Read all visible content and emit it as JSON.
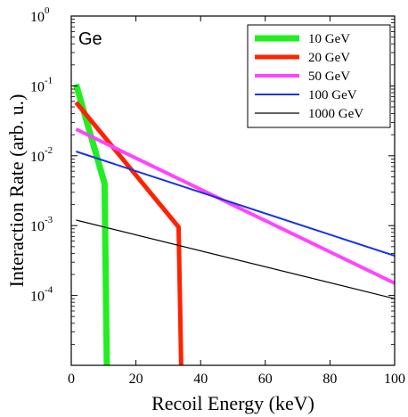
{
  "chart_data": {
    "type": "line",
    "panel_label": "Ge",
    "xlabel": "Recoil Energy (keV)",
    "ylabel": "Interaction Rate (arb. u.)",
    "xlim": [
      0,
      100
    ],
    "ylim": [
      1e-05,
      1
    ],
    "yscale": "log",
    "x_ticks": [
      0,
      20,
      40,
      60,
      80,
      100
    ],
    "x_tick_labels": [
      "0",
      "20",
      "40",
      "60",
      "80",
      "100"
    ],
    "y_ticks": [
      1,
      0.1,
      0.01,
      0.001,
      0.0001
    ],
    "y_tick_labels": [
      {
        "base": "10",
        "exp": "0"
      },
      {
        "base": "10",
        "exp": "-1"
      },
      {
        "base": "10",
        "exp": "-2"
      },
      {
        "base": "10",
        "exp": "-3"
      },
      {
        "base": "10",
        "exp": "-4"
      }
    ],
    "grid": false,
    "legend_position": "top-right",
    "series": [
      {
        "name": "10 GeV",
        "color": "#22ee22",
        "x": [
          1.5,
          10.3,
          11.0
        ],
        "y": [
          0.105,
          0.004,
          1e-05
        ]
      },
      {
        "name": "20 GeV",
        "color": "#ff2200",
        "x": [
          1.5,
          33.2,
          34.0
        ],
        "y": [
          0.058,
          0.00095,
          1e-05
        ]
      },
      {
        "name": "50 GeV",
        "color": "#ff44ff",
        "x": [
          1.5,
          100
        ],
        "y": [
          0.024,
          0.00015
        ]
      },
      {
        "name": "100 GeV",
        "color": "#1133ee",
        "x": [
          1.5,
          100
        ],
        "y": [
          0.0115,
          0.00037
        ]
      },
      {
        "name": "1000 GeV",
        "color": "#000000",
        "x": [
          1.5,
          100
        ],
        "y": [
          0.0012,
          9e-05
        ]
      }
    ]
  }
}
